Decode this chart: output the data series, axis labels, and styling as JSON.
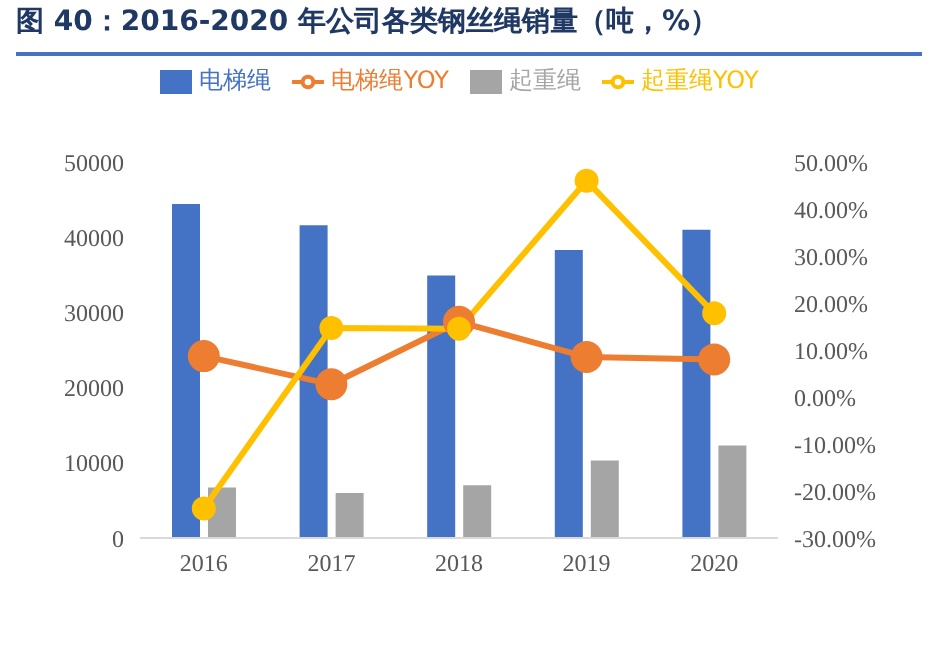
{
  "chart_data": {
    "type": "bar",
    "title": "图 40：2016-2020 年公司各类钢丝绳销量（吨，%）",
    "categories": [
      "2016",
      "2017",
      "2018",
      "2019",
      "2020"
    ],
    "series": [
      {
        "name": "电梯绳",
        "color": "#4472c4",
        "values": [
          44400,
          41600,
          34900,
          38300,
          41000
        ]
      },
      {
        "name": "起重绳",
        "color": "#a5a5a5",
        "values": [
          6700,
          6000,
          7000,
          10300,
          12300
        ]
      },
      {
        "name": "电梯绳YOY",
        "type": "line",
        "axis": "y2",
        "color": "#ed7d31",
        "values": [
          8.7,
          2.7,
          16,
          8.5,
          8.0
        ]
      },
      {
        "name": "起重绳YOY",
        "type": "line",
        "axis": "y2",
        "color": "#ffc000",
        "values": [
          -23.7,
          14.7,
          14.5,
          46,
          17.8
        ]
      }
    ],
    "ylim": [
      0,
      50000
    ],
    "yticks": [
      0,
      10000,
      20000,
      30000,
      40000,
      50000
    ],
    "y2lim": [
      -30,
      50
    ],
    "y2ticks": [
      {
        "value": -30,
        "label": "-30.00%"
      },
      {
        "value": -20,
        "label": "-20.00%"
      },
      {
        "value": -10,
        "label": "-10.00%"
      },
      {
        "value": 0,
        "label": "0.00%"
      },
      {
        "value": 10,
        "label": "10.00%"
      },
      {
        "value": 20,
        "label": "20.00%"
      },
      {
        "value": 30,
        "label": "30.00%"
      },
      {
        "value": 40,
        "label": "40.00%"
      },
      {
        "value": 50,
        "label": "50.00%"
      }
    ],
    "grid": false,
    "legend": "top",
    "marker": "circle",
    "line_style": "solid"
  }
}
